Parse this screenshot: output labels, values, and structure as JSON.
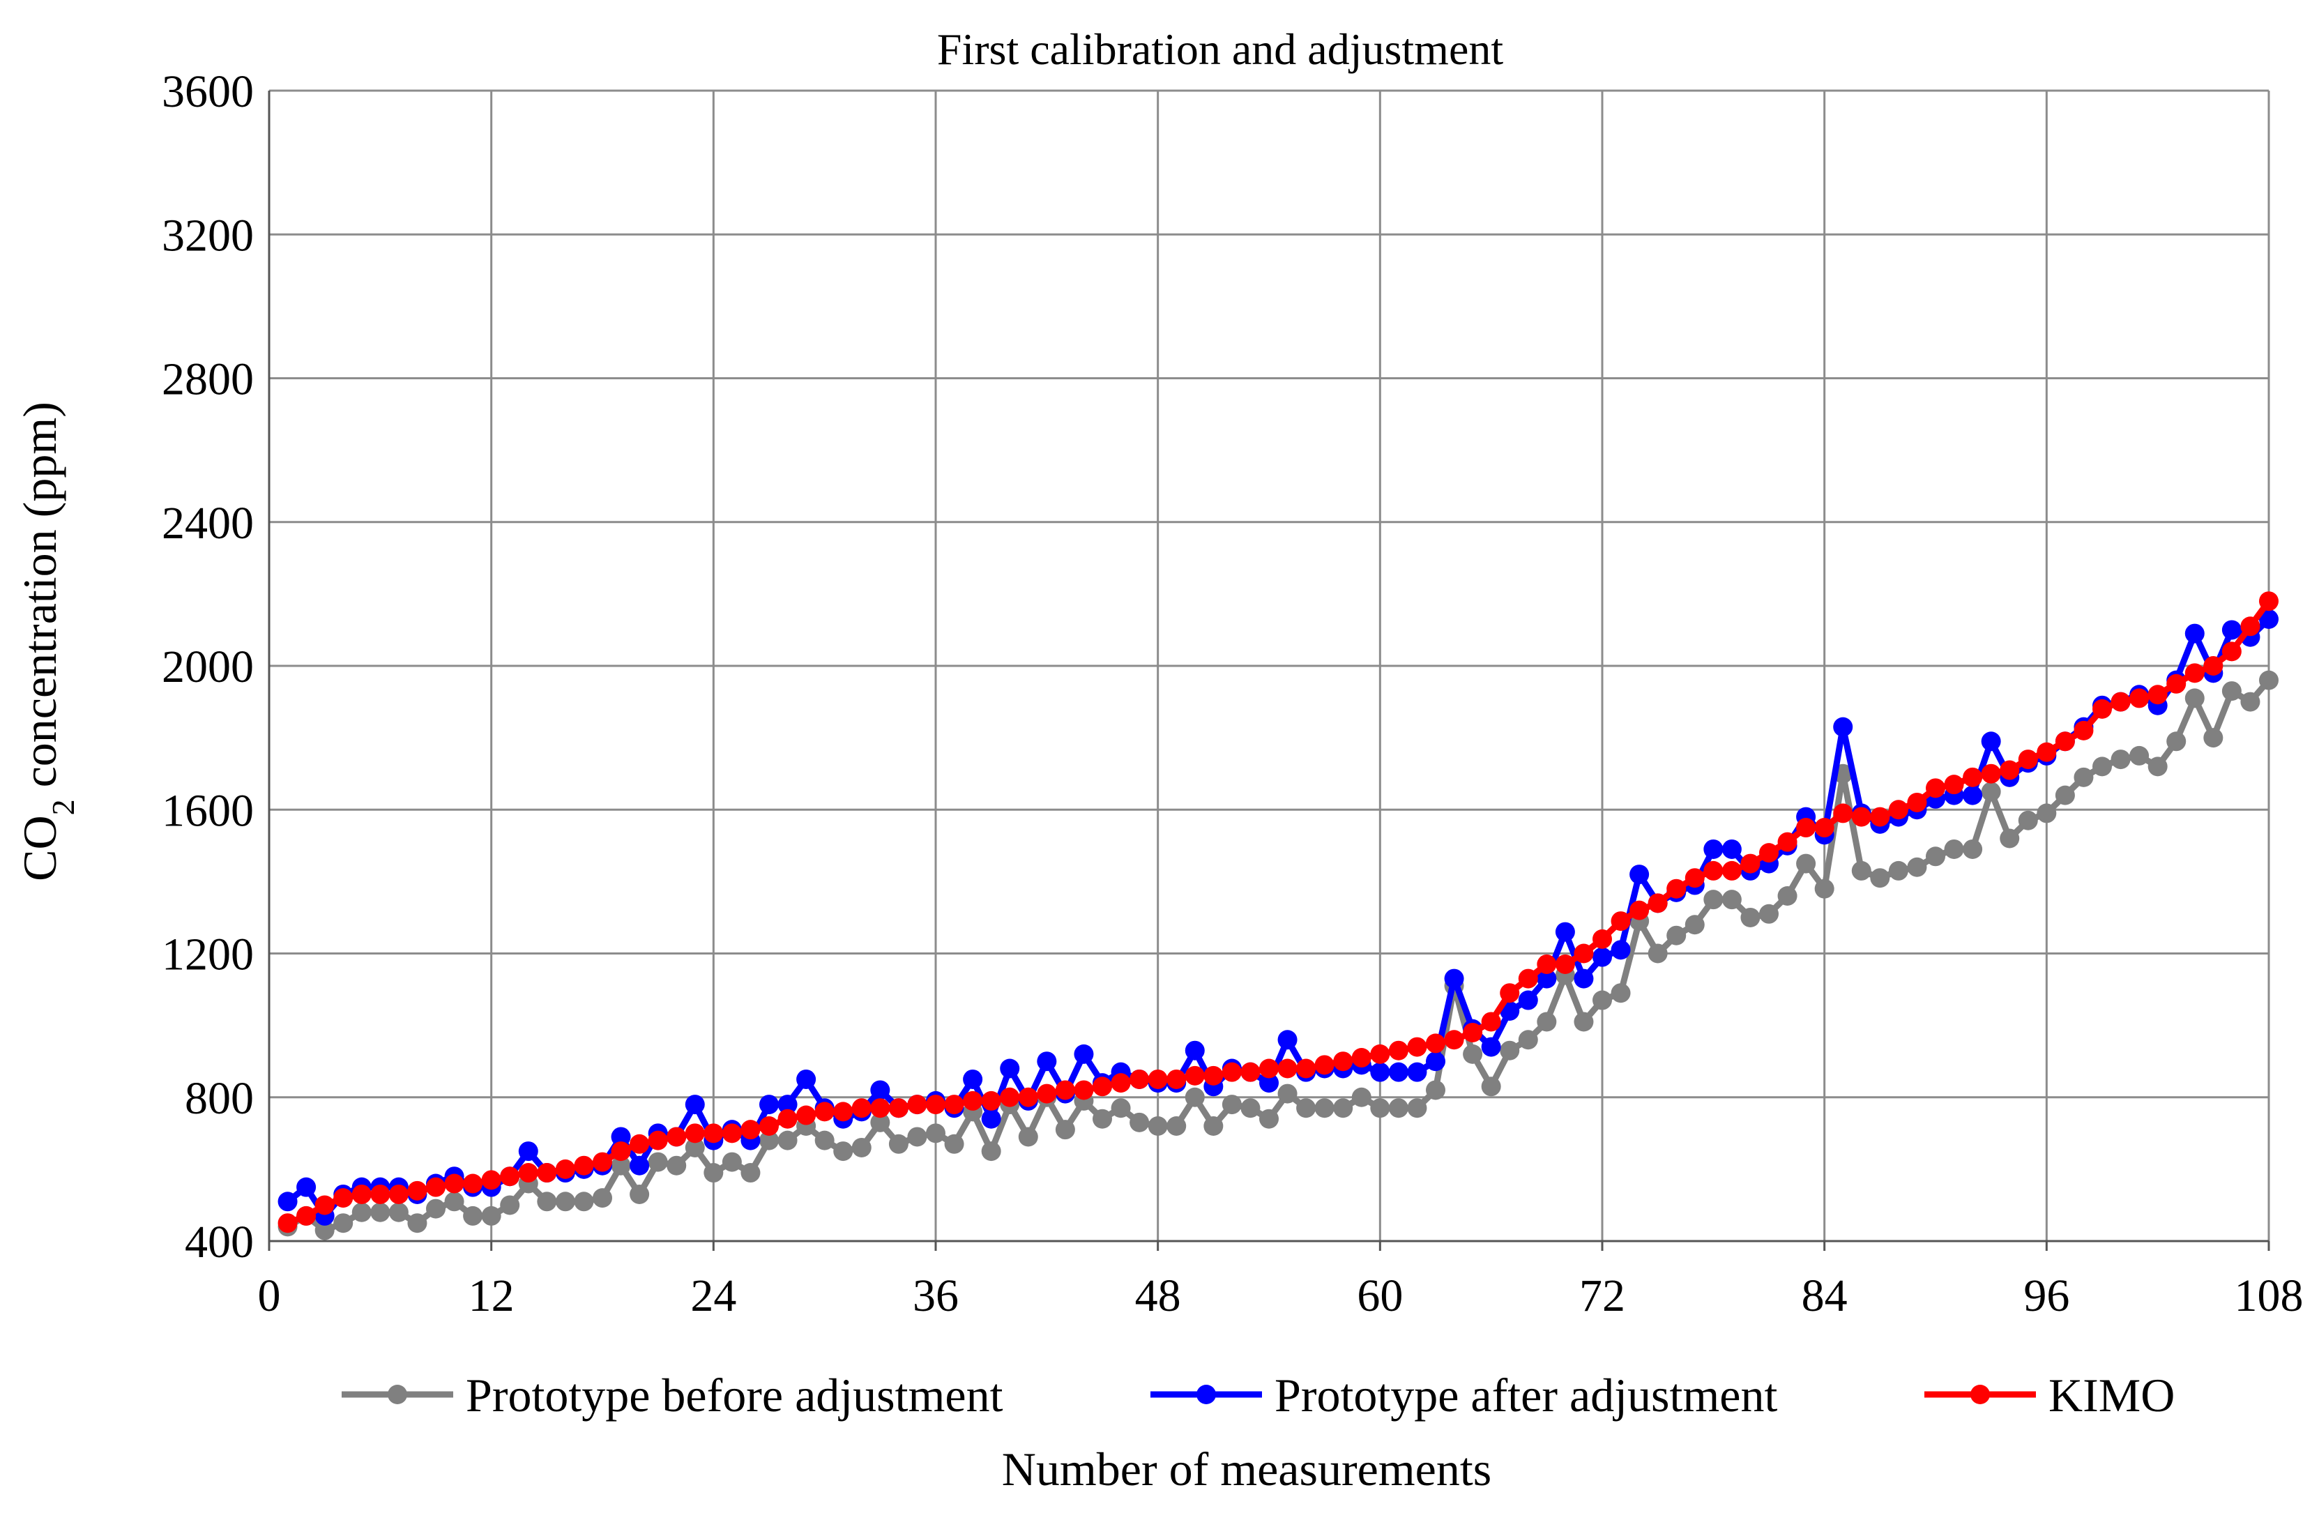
{
  "chart_data": {
    "type": "line",
    "title": "First calibration and adjustment",
    "xlabel": "Number of measurements",
    "ylabel_main": "CO",
    "ylabel_sub": "2",
    "ylabel_rest": " concentration  (ppm)",
    "xlim": [
      0,
      108
    ],
    "ylim": [
      400,
      3600
    ],
    "xticks": [
      0,
      12,
      24,
      36,
      48,
      60,
      72,
      84,
      96,
      108
    ],
    "yticks": [
      400,
      800,
      1200,
      1600,
      2000,
      2400,
      2800,
      3200,
      3600
    ],
    "grid": true,
    "legend_position": "bottom",
    "x": [
      1,
      2,
      3,
      4,
      5,
      6,
      7,
      8,
      9,
      10,
      11,
      12,
      13,
      14,
      15,
      16,
      17,
      18,
      19,
      20,
      21,
      22,
      23,
      24,
      25,
      26,
      27,
      28,
      29,
      30,
      31,
      32,
      33,
      34,
      35,
      36,
      37,
      38,
      39,
      40,
      41,
      42,
      43,
      44,
      45,
      46,
      47,
      48,
      49,
      50,
      51,
      52,
      53,
      54,
      55,
      56,
      57,
      58,
      59,
      60,
      61,
      62,
      63,
      64,
      65,
      66,
      67,
      68,
      69,
      70,
      71,
      72,
      73,
      74,
      75,
      76,
      77,
      78,
      79,
      80,
      81,
      82,
      83,
      84,
      85,
      86,
      87,
      88,
      89,
      90,
      91,
      92,
      93,
      94,
      95,
      96,
      97,
      98,
      99,
      100,
      101,
      102,
      103,
      104,
      105,
      106,
      107,
      108
    ],
    "series": [
      {
        "name": "Prototype before adjustment",
        "color": "#808080",
        "values": [
          440,
          470,
          430,
          450,
          480,
          480,
          480,
          450,
          490,
          510,
          470,
          470,
          500,
          560,
          510,
          510,
          510,
          520,
          610,
          530,
          620,
          610,
          660,
          590,
          620,
          590,
          680,
          680,
          720,
          680,
          650,
          660,
          730,
          670,
          690,
          700,
          670,
          760,
          650,
          780,
          690,
          800,
          710,
          790,
          740,
          770,
          730,
          720,
          720,
          800,
          720,
          780,
          770,
          740,
          810,
          770,
          770,
          770,
          800,
          770,
          770,
          770,
          820,
          1110,
          920,
          830,
          930,
          960,
          1010,
          1140,
          1010,
          1070,
          1090,
          1290,
          1200,
          1250,
          1280,
          1350,
          1350,
          1300,
          1310,
          1360,
          1450,
          1380,
          1700,
          1430,
          1410,
          1430,
          1440,
          1470,
          1490,
          1490,
          1650,
          1520,
          1570,
          1590,
          1640,
          1690,
          1720,
          1740,
          1750,
          1720,
          1790,
          1910,
          1800,
          1930,
          1900,
          1960
        ]
      },
      {
        "name": "Prototype after adjustment",
        "color": "#0000ff",
        "values": [
          510,
          550,
          470,
          530,
          550,
          550,
          550,
          530,
          560,
          580,
          550,
          550,
          580,
          650,
          590,
          590,
          600,
          610,
          690,
          610,
          700,
          690,
          780,
          680,
          710,
          680,
          780,
          780,
          850,
          770,
          740,
          760,
          820,
          770,
          780,
          790,
          770,
          850,
          740,
          880,
          790,
          900,
          810,
          920,
          840,
          870,
          850,
          840,
          840,
          930,
          830,
          880,
          870,
          840,
          960,
          870,
          880,
          880,
          890,
          870,
          870,
          870,
          900,
          1130,
          990,
          940,
          1040,
          1070,
          1130,
          1260,
          1130,
          1190,
          1210,
          1420,
          1340,
          1370,
          1390,
          1490,
          1490,
          1430,
          1450,
          1500,
          1580,
          1530,
          1830,
          1590,
          1560,
          1580,
          1600,
          1630,
          1640,
          1640,
          1790,
          1690,
          1730,
          1750,
          1790,
          1830,
          1890,
          1900,
          1920,
          1890,
          1960,
          2090,
          1980,
          2100,
          2080,
          2130
        ]
      },
      {
        "name": "KIMO",
        "color": "#ff0000",
        "values": [
          450,
          470,
          500,
          520,
          530,
          530,
          530,
          540,
          550,
          560,
          560,
          570,
          580,
          590,
          590,
          600,
          610,
          620,
          650,
          670,
          680,
          690,
          700,
          700,
          700,
          710,
          720,
          740,
          750,
          760,
          760,
          770,
          770,
          770,
          780,
          780,
          780,
          790,
          790,
          800,
          800,
          810,
          820,
          820,
          830,
          840,
          850,
          850,
          850,
          860,
          860,
          870,
          870,
          880,
          880,
          880,
          890,
          900,
          910,
          920,
          930,
          940,
          950,
          960,
          980,
          1010,
          1090,
          1130,
          1170,
          1170,
          1200,
          1240,
          1290,
          1320,
          1340,
          1380,
          1410,
          1430,
          1430,
          1450,
          1480,
          1510,
          1550,
          1550,
          1590,
          1580,
          1580,
          1600,
          1620,
          1660,
          1670,
          1690,
          1700,
          1710,
          1740,
          1760,
          1790,
          1820,
          1880,
          1900,
          1910,
          1920,
          1950,
          1980,
          2000,
          2040,
          2110,
          2180
        ]
      }
    ]
  }
}
